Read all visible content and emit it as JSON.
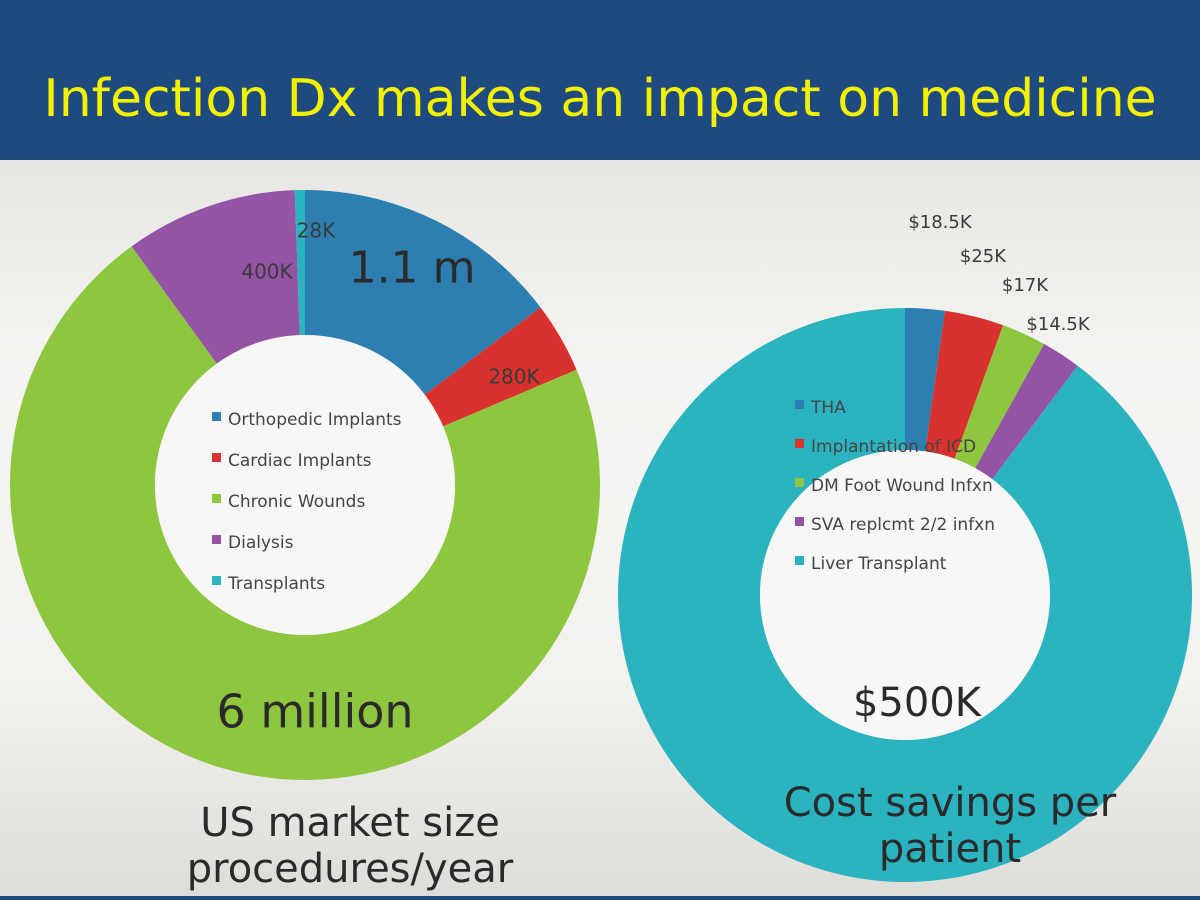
{
  "slide": {
    "title": "Infection Dx makes an impact on medicine"
  },
  "colors": {
    "title": "#f2f200",
    "header_bg": "#1f4a80"
  },
  "chart_data": [
    {
      "type": "pie",
      "donut": true,
      "categories": [
        "Orthopedic Implants",
        "Cardiac Implants",
        "Chronic Wounds",
        "Dialysis",
        "Transplants"
      ],
      "values": [
        1100000,
        280000,
        6000000,
        400000,
        28000
      ],
      "colors": [
        "#2c7fb0",
        "#d9322e",
        "#8ec63f",
        "#9454a6",
        "#2bb3c0"
      ],
      "data_labels": [
        "1.1 m",
        "280K",
        "6 million",
        "400K",
        "28K"
      ],
      "legend": [
        "Orthopedic Implants",
        "Cardiac Implants",
        "Chronic Wounds",
        "Dialysis",
        "Transplants"
      ],
      "legend_position": "center",
      "caption": [
        "US market size",
        "procedures/year"
      ]
    },
    {
      "type": "pie",
      "donut": true,
      "categories": [
        "THA",
        "Implantation of ICD",
        "DM Foot Wound Infxn",
        "SVA replcmt 2/2 infxn",
        "Liver Transplant"
      ],
      "values": [
        18500,
        25000,
        17000,
        14500,
        500000
      ],
      "colors": [
        "#2c7fb0",
        "#d9322e",
        "#8ec63f",
        "#9454a6",
        "#2bb3c0"
      ],
      "data_labels": [
        "$18.5K",
        "$25K",
        "$17K",
        "$14.5K",
        "$500K"
      ],
      "legend": [
        "THA",
        "Implantation of ICD",
        "DM Foot Wound Infxn",
        "SVA replcmt 2/2 infxn",
        "Liver Transplant"
      ],
      "legend_position": "center",
      "caption": [
        "Cost savings per",
        "patient"
      ]
    }
  ]
}
